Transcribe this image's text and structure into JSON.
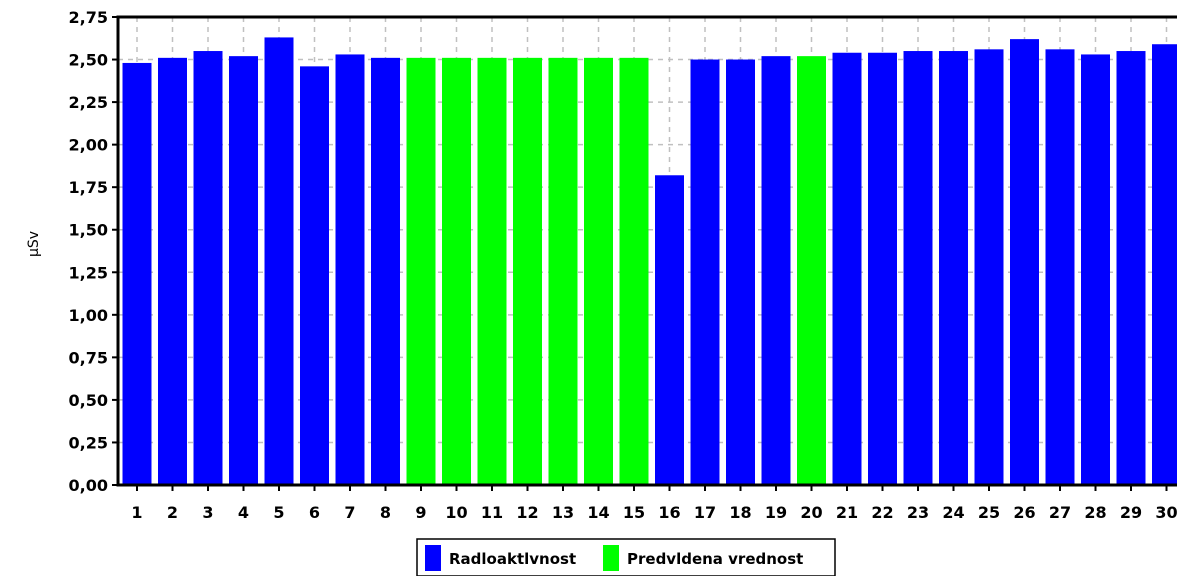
{
  "chart_data": {
    "type": "bar",
    "ylabel": "µSv",
    "xlabel": "",
    "ylim": [
      0,
      2.75
    ],
    "yticks": [
      "0,00",
      "0,25",
      "0,50",
      "0,75",
      "1,00",
      "1,25",
      "1,50",
      "1,75",
      "2,00",
      "2,25",
      "2,50",
      "2,75"
    ],
    "grid": true,
    "legend_position": "bottom-center",
    "categories": [
      "1",
      "2",
      "3",
      "4",
      "5",
      "6",
      "7",
      "8",
      "9",
      "10",
      "11",
      "12",
      "13",
      "14",
      "15",
      "16",
      "17",
      "18",
      "19",
      "20",
      "21",
      "22",
      "23",
      "24",
      "25",
      "26",
      "27",
      "28",
      "29",
      "30"
    ],
    "values": [
      2.48,
      2.51,
      2.55,
      2.52,
      2.63,
      2.46,
      2.53,
      2.51,
      2.51,
      2.51,
      2.51,
      2.51,
      2.51,
      2.51,
      2.51,
      1.82,
      2.5,
      2.5,
      2.52,
      2.52,
      2.54,
      2.54,
      2.55,
      2.55,
      2.56,
      2.62,
      2.56,
      2.53,
      2.55,
      2.59
    ],
    "series_index": [
      0,
      0,
      0,
      0,
      0,
      0,
      0,
      0,
      1,
      1,
      1,
      1,
      1,
      1,
      1,
      0,
      0,
      0,
      0,
      1,
      0,
      0,
      0,
      0,
      0,
      0,
      0,
      0,
      0,
      0
    ],
    "series": [
      {
        "name": "Radloaktlvnost",
        "color": "#0000ff"
      },
      {
        "name": "Predvldena vrednost",
        "color": "#00ff00"
      }
    ]
  }
}
